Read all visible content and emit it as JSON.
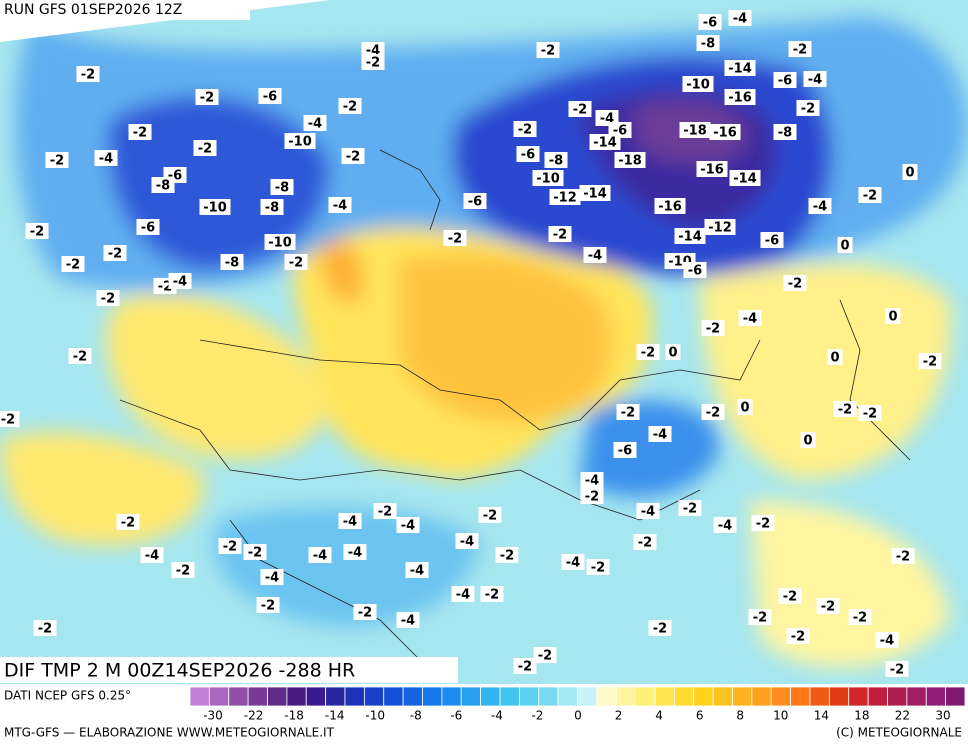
{
  "header": {
    "title": "RUN GFS 01SEP2026 12Z"
  },
  "map": {
    "field_title": "DIF TMP 2 M 00Z14SEP2026 -288 HR",
    "labels": [
      "-6",
      "-4",
      "-8",
      "-2",
      "-14",
      "-6",
      "-4",
      "-10",
      "-16",
      "-2",
      "-18",
      "-16",
      "-8",
      "-18",
      "-16",
      "-14",
      "-16",
      "-12",
      "-14",
      "-6",
      "-10",
      "-6",
      "-4",
      "-2",
      "0",
      "0",
      "-2",
      "-4",
      "-2",
      "0",
      "-2",
      "0",
      "0",
      "-2",
      "-2",
      "-2",
      "0",
      "-2",
      "-2",
      "-4",
      "-6",
      "0",
      "-4",
      "-2",
      "-4",
      "-2",
      "-4",
      "-2",
      "-2",
      "-4",
      "-2",
      "-2",
      "-4",
      "-2",
      "-4",
      "-4",
      "-2",
      "-4",
      "-4",
      "-2",
      "-4",
      "-4",
      "-2",
      "-2",
      "-4",
      "-2",
      "-2",
      "-4",
      "-2",
      "-4",
      "-2",
      "-2",
      "-2",
      "-2",
      "-2",
      "-2",
      "-2",
      "-2",
      "-2",
      "-4",
      "-2",
      "-2",
      "-2",
      "-2",
      "-4",
      "-2",
      "-2",
      "-2",
      "-2",
      "-4",
      "-6",
      "-14",
      "-2",
      "-6",
      "-8",
      "-10",
      "-12",
      "-14",
      "-6",
      "-2",
      "-2",
      "-4",
      "-2",
      "-2",
      "-6",
      "-4",
      "-10",
      "-2",
      "-2",
      "-4",
      "-2",
      "-6",
      "-8",
      "-8",
      "-10",
      "-8",
      "-4",
      "-6",
      "-2",
      "-10",
      "-8",
      "-2",
      "-2",
      "-2",
      "-2",
      "-4",
      "-2",
      "-2",
      "-2"
    ]
  },
  "legend": {
    "source": "DATI NCEP GFS 0.25°",
    "colors": [
      "#c080d8",
      "#a868c0",
      "#9050a8",
      "#783c98",
      "#602a88",
      "#4a1e80",
      "#3a1a90",
      "#2828a0",
      "#1e32b8",
      "#1840c8",
      "#1450d8",
      "#1464e0",
      "#1478e8",
      "#1e8cf0",
      "#28a0f0",
      "#32b4f0",
      "#40c4f0",
      "#5ad2f0",
      "#78dcf0",
      "#a0e8f4",
      "#c8f4f8",
      "#fffac8",
      "#fff5a0",
      "#fff078",
      "#ffe650",
      "#ffdc32",
      "#ffd21e",
      "#ffc31e",
      "#ffb41e",
      "#ffa01e",
      "#ff8c1e",
      "#ff7814",
      "#f05a14",
      "#e03c14",
      "#d02828",
      "#c01e3c",
      "#b01e50",
      "#a01e64",
      "#901e78",
      "#801a70"
    ],
    "tick_labels": [
      "-30",
      "-22",
      "-18",
      "-14",
      "-10",
      "-8",
      "-6",
      "-4",
      "-2",
      "0",
      "2",
      "4",
      "6",
      "8",
      "10",
      "14",
      "18",
      "22",
      "30"
    ]
  },
  "footer": {
    "left": "MTG-GFS — ELABORAZIONE WWW.METEOGIORNALE.IT",
    "right": "(C) METEOGIORNALE"
  }
}
